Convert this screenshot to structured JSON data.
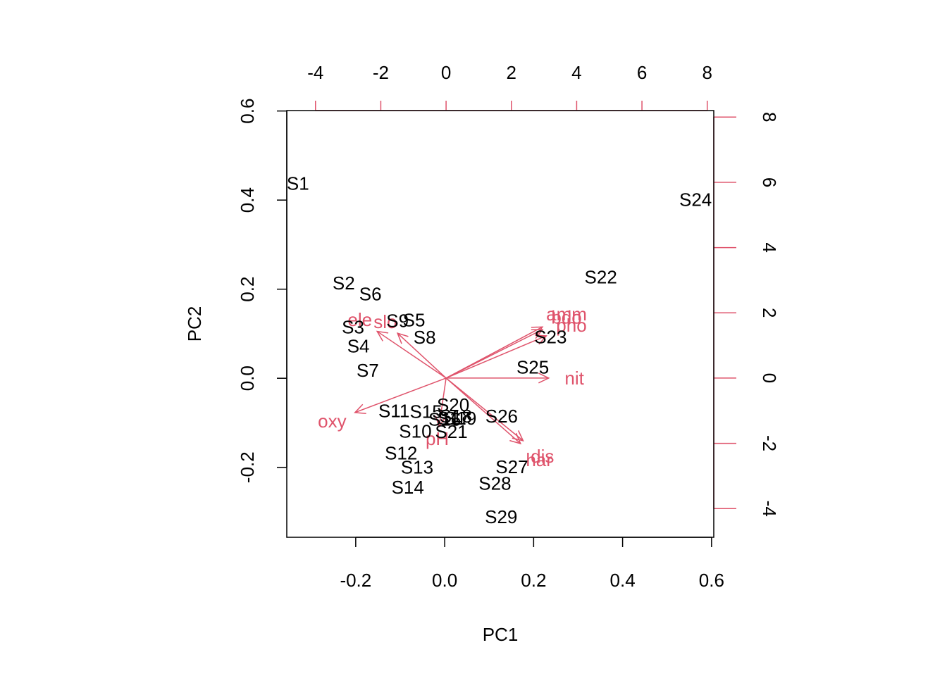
{
  "chart_data": {
    "type": "scatter",
    "subtype": "biplot",
    "xlabel": "PC1",
    "ylabel": "PC2",
    "xlim": [
      -0.355,
      0.605
    ],
    "ylim": [
      -0.357,
      0.601
    ],
    "x_ticks": [
      "-0.2",
      "0.0",
      "0.2",
      "0.4",
      "0.6"
    ],
    "x_tick_values": [
      -0.2,
      0.0,
      0.2,
      0.4,
      0.6
    ],
    "y_ticks": [
      "-0.2",
      "0.0",
      "0.2",
      "0.4",
      "0.6"
    ],
    "y_tick_values": [
      -0.2,
      0.0,
      0.2,
      0.4,
      0.6
    ],
    "top_ticks": [
      "-4",
      "-2",
      "0",
      "2",
      "4",
      "6",
      "8"
    ],
    "top_tick_values": [
      -4,
      -2,
      0,
      2,
      4,
      6,
      8
    ],
    "right_ticks": [
      "-4",
      "-2",
      "0",
      "2",
      "4",
      "6",
      "8"
    ],
    "right_tick_values": [
      -4,
      -2,
      0,
      2,
      4,
      6,
      8
    ],
    "secondary_xlim": [
      -4.88,
      8.2
    ],
    "secondary_ylim": [
      -4.88,
      8.2
    ],
    "grid": false,
    "colors": {
      "scores": "#000000",
      "loadings": "#DF536B"
    },
    "scores": [
      {
        "label": "S1",
        "x": -0.33,
        "y": 0.437
      },
      {
        "label": "S2",
        "x": -0.227,
        "y": 0.214
      },
      {
        "label": "S3",
        "x": -0.206,
        "y": 0.115
      },
      {
        "label": "S4",
        "x": -0.194,
        "y": 0.072
      },
      {
        "label": "S5",
        "x": -0.069,
        "y": 0.131
      },
      {
        "label": "S6",
        "x": -0.167,
        "y": 0.189
      },
      {
        "label": "S7",
        "x": -0.173,
        "y": 0.018
      },
      {
        "label": "S8",
        "x": -0.045,
        "y": 0.092
      },
      {
        "label": "S9",
        "x": -0.106,
        "y": 0.129
      },
      {
        "label": "S10",
        "x": -0.066,
        "y": -0.119
      },
      {
        "label": "S11",
        "x": -0.114,
        "y": -0.073
      },
      {
        "label": "S12",
        "x": -0.098,
        "y": -0.168
      },
      {
        "label": "S13",
        "x": -0.062,
        "y": -0.2
      },
      {
        "label": "S14",
        "x": -0.083,
        "y": -0.245
      },
      {
        "label": "S15",
        "x": -0.042,
        "y": -0.075
      },
      {
        "label": "S16",
        "x": 0.0,
        "y": -0.092
      },
      {
        "label": "S17",
        "x": 0.02,
        "y": -0.09
      },
      {
        "label": "S18",
        "x": 0.025,
        "y": -0.085
      },
      {
        "label": "S19",
        "x": 0.035,
        "y": -0.09
      },
      {
        "label": "S20",
        "x": 0.019,
        "y": -0.06
      },
      {
        "label": "S21",
        "x": 0.015,
        "y": -0.12
      },
      {
        "label": "S22",
        "x": 0.351,
        "y": 0.227
      },
      {
        "label": "S23",
        "x": 0.238,
        "y": 0.093
      },
      {
        "label": "S24",
        "x": 0.564,
        "y": 0.401
      },
      {
        "label": "S25",
        "x": 0.198,
        "y": 0.025
      },
      {
        "label": "S26",
        "x": 0.128,
        "y": -0.085
      },
      {
        "label": "S27",
        "x": 0.151,
        "y": -0.199
      },
      {
        "label": "S28",
        "x": 0.113,
        "y": -0.236
      },
      {
        "label": "S29",
        "x": 0.127,
        "y": -0.311
      }
    ],
    "loadings": [
      {
        "label": "ele",
        "x": -2.64,
        "y": 1.79
      },
      {
        "label": "slo",
        "x": -1.86,
        "y": 1.72
      },
      {
        "label": "oxy",
        "x": -3.49,
        "y": -1.32
      },
      {
        "label": "pH",
        "x": -0.27,
        "y": -1.86
      },
      {
        "label": "amm",
        "x": 3.69,
        "y": 1.96
      },
      {
        "label": "bdo",
        "x": 3.69,
        "y": 1.86
      },
      {
        "label": "pho",
        "x": 3.84,
        "y": 1.62
      },
      {
        "label": "nit",
        "x": 3.93,
        "y": 0.0
      },
      {
        "label": "dis",
        "x": 2.95,
        "y": -2.4
      },
      {
        "label": "har",
        "x": 2.85,
        "y": -2.51
      }
    ]
  }
}
